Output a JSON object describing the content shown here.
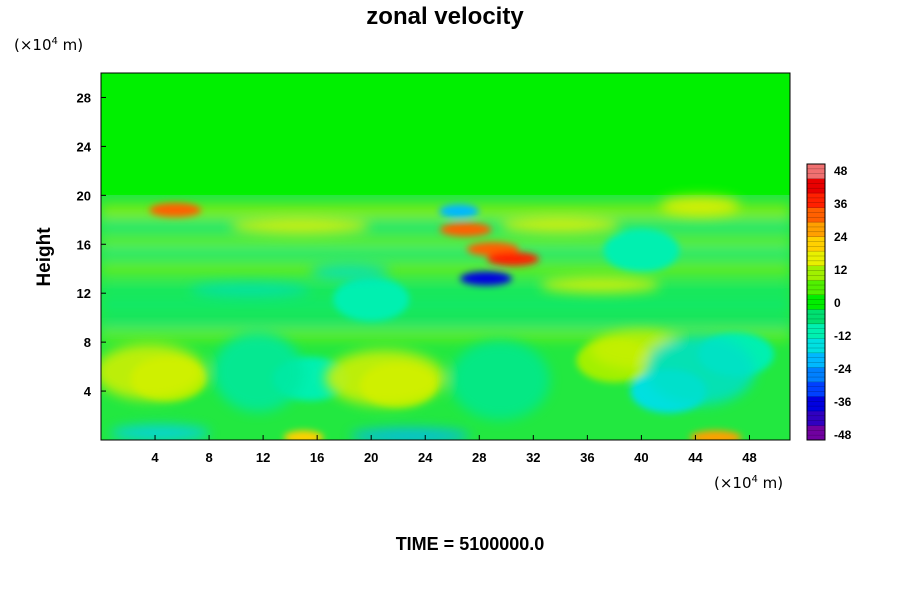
{
  "chart_data": {
    "type": "heatmap",
    "title": "zonal velocity",
    "ylabel": "Height",
    "x_unit": {
      "prefix": "(×10",
      "exponent": "4",
      "suffix": " m)"
    },
    "y_unit": {
      "prefix": "(×10",
      "exponent": "4",
      "suffix": " m)"
    },
    "x_ticks": [
      "4",
      "8",
      "12",
      "16",
      "20",
      "24",
      "28",
      "32",
      "36",
      "40",
      "44",
      "48"
    ],
    "y_ticks": [
      "4",
      "8",
      "12",
      "16",
      "20",
      "24",
      "28"
    ],
    "xlim": [
      0,
      51
    ],
    "ylim": [
      0,
      30
    ],
    "colorbar": {
      "ticks": [
        "48",
        "36",
        "24",
        "12",
        "0",
        "-12",
        "-24",
        "-36",
        "-48"
      ],
      "range": [
        -48,
        48
      ],
      "colors": [
        "#7000a0",
        "#3000c0",
        "#0000e0",
        "#0040ff",
        "#0080ff",
        "#00b8ff",
        "#00e0e0",
        "#00f0b0",
        "#00e070",
        "#00ee00",
        "#50f000",
        "#a0f000",
        "#e8f000",
        "#ffd000",
        "#ffa000",
        "#ff6000",
        "#ff2000",
        "#e80000",
        "#f07070"
      ]
    },
    "features": [
      {
        "x": 5.5,
        "y": 18.8,
        "value": 28
      },
      {
        "x": 27.0,
        "y": 17.2,
        "value": 30
      },
      {
        "x": 29.0,
        "y": 15.6,
        "value": 32
      },
      {
        "x": 30.5,
        "y": 14.8,
        "value": 34
      },
      {
        "x": 28.5,
        "y": 13.2,
        "value": -34
      },
      {
        "x": 26.5,
        "y": 18.7,
        "value": -22
      },
      {
        "x": 45.5,
        "y": 0.2,
        "value": 26
      },
      {
        "x": 15.0,
        "y": 0.2,
        "value": 22
      },
      {
        "x": 5.0,
        "y": 5.0,
        "value": 12
      },
      {
        "x": 22.0,
        "y": 4.5,
        "value": 12
      },
      {
        "x": 38.0,
        "y": 6.5,
        "value": 12
      },
      {
        "x": 42.0,
        "y": 4.0,
        "value": -14
      },
      {
        "x": 47.0,
        "y": 7.0,
        "value": -12
      },
      {
        "x": 15.5,
        "y": 5.0,
        "value": -8
      },
      {
        "x": 20.0,
        "y": 11.5,
        "value": -10
      },
      {
        "x": 40.0,
        "y": 15.5,
        "value": -8
      }
    ]
  },
  "footer": {
    "time_label": "TIME = 5100000.0"
  }
}
